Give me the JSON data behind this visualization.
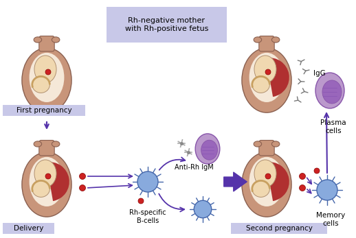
{
  "bg_color": "#ffffff",
  "label_bg": "#c8c8e8",
  "title_bg": "#c8c8e8",
  "arrow_color": "#5533aa",
  "uterus_outer": "#c8957a",
  "uterus_wall": "#d4a882",
  "uterus_inner": "#f5e8d8",
  "placenta_color": "#b03030",
  "baby_skin": "#f0d8b0",
  "blood_color": "#cc2222",
  "bcell_fill": "#88aadd",
  "bcell_edge": "#4466aa",
  "plasma_fill": "#bb99cc",
  "plasma_edge": "#8855aa",
  "igg_color": "#555555",
  "labels": {
    "first_pregnancy": "First pregnancy",
    "delivery": "Delivery",
    "second_pregnancy": "Second pregnancy",
    "header": "Rh-negative mother\nwith Rh-positive fetus",
    "rh_specific": "Rh-specific\nB-cells",
    "anti_rh": "Anti-Rh IgM",
    "plasma_cells": "Plasma\ncells",
    "memory_cells": "Memory\ncells",
    "igg": "IgG"
  },
  "figsize": [
    5.18,
    3.47
  ],
  "dpi": 100
}
